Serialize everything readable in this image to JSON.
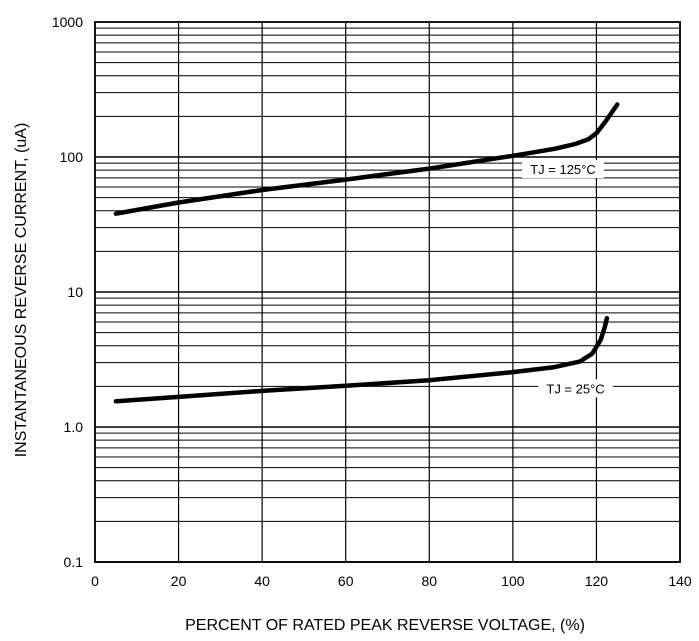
{
  "chart_data": {
    "type": "line",
    "title": "",
    "xlabel": "PERCENT OF RATED PEAK REVERSE VOLTAGE, (%)",
    "ylabel": "INSTANTANEOUS REVERSE CURRENT, (uA)",
    "xlim": [
      0,
      140
    ],
    "ylim": [
      0.1,
      1000
    ],
    "yscale": "log",
    "grid": true,
    "x_ticks": [
      0,
      20,
      40,
      60,
      80,
      100,
      120,
      140
    ],
    "x_tick_labels": [
      "0",
      "20",
      "40",
      "60",
      "80",
      "100",
      "120",
      "140"
    ],
    "y_ticks": [
      0.1,
      1,
      10,
      100,
      1000
    ],
    "y_tick_labels": [
      "0.1",
      "1.0",
      "10",
      "100",
      "1000"
    ],
    "series": [
      {
        "name": "TJ = 125°C",
        "points": [
          [
            5,
            38
          ],
          [
            20,
            46
          ],
          [
            40,
            57
          ],
          [
            60,
            68
          ],
          [
            80,
            82
          ],
          [
            100,
            102
          ],
          [
            110,
            115
          ],
          [
            115,
            125
          ],
          [
            118,
            135
          ],
          [
            120,
            150
          ],
          [
            122,
            180
          ],
          [
            125,
            245
          ]
        ]
      },
      {
        "name": "TJ = 25°C",
        "points": [
          [
            5,
            1.55
          ],
          [
            20,
            1.67
          ],
          [
            40,
            1.85
          ],
          [
            60,
            2.02
          ],
          [
            80,
            2.22
          ],
          [
            100,
            2.55
          ],
          [
            110,
            2.78
          ],
          [
            116,
            3.05
          ],
          [
            119,
            3.5
          ],
          [
            121,
            4.4
          ],
          [
            122,
            5.5
          ],
          [
            122.5,
            6.4
          ]
        ]
      }
    ],
    "annotations": [
      {
        "text": "TJ = 125°C",
        "x": 112,
        "y": 80
      },
      {
        "text": "TJ = 25°C",
        "x": 115,
        "y": 1.9
      }
    ]
  }
}
